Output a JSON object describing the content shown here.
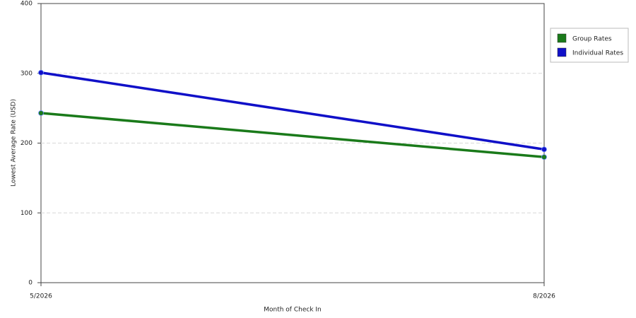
{
  "chart_data": {
    "type": "line",
    "x_label": "Month of Check In",
    "y_label": "Lowest Average Rate (USD)",
    "categories": [
      "5/2026",
      "8/2026"
    ],
    "series": [
      {
        "name": "Group Rates",
        "color": "#1a7a1a",
        "values": [
          243,
          180
        ]
      },
      {
        "name": "Individual Rates",
        "color": "#1010c8",
        "values": [
          301,
          191
        ]
      }
    ],
    "ylim": [
      0,
      400
    ],
    "yticks": [
      0,
      100,
      200,
      300,
      400
    ],
    "grid": true,
    "legend": "right"
  }
}
